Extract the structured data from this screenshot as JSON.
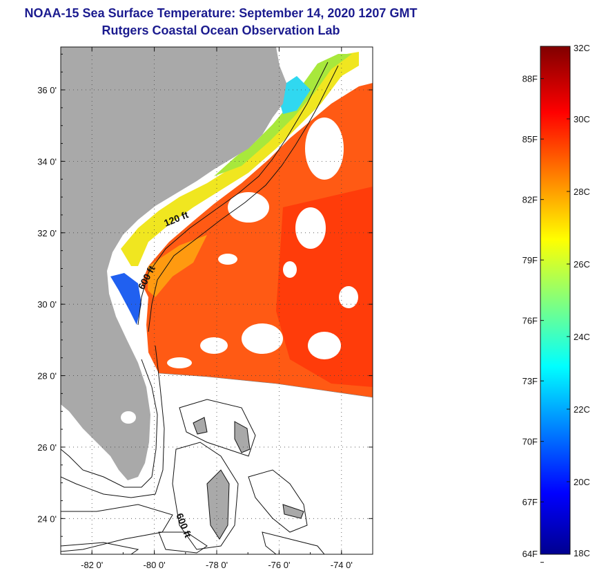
{
  "title_line1": "NOAA-15 Sea Surface Temperature:  September 14, 2020 1207 GMT",
  "title_line2": "Rutgers Coastal Ocean Observation Lab",
  "colors": {
    "land": "#a9a9a9",
    "ocean_warm": "#ff5a14",
    "ocean_warmer": "#ff3a0a",
    "cloud": "#ffffff",
    "title": "#1b1b8f"
  },
  "map": {
    "lon_range": [
      -83,
      -73
    ],
    "lat_range": [
      23,
      37.2
    ],
    "lon_ticks": [
      {
        "value": -82,
        "label": "-82 0'"
      },
      {
        "value": -80,
        "label": "-80 0'"
      },
      {
        "value": -78,
        "label": "-78 0'"
      },
      {
        "value": -76,
        "label": "-76 0'"
      },
      {
        "value": -74,
        "label": "-74 0'"
      }
    ],
    "lat_ticks": [
      {
        "value": 24,
        "label": "24 0'"
      },
      {
        "value": 26,
        "label": "26 0'"
      },
      {
        "value": 28,
        "label": "28 0'"
      },
      {
        "value": 30,
        "label": "30 0'"
      },
      {
        "value": 32,
        "label": "32 0'"
      },
      {
        "value": 34,
        "label": "34 0'"
      },
      {
        "value": 36,
        "label": "36 0'"
      }
    ],
    "contour_labels": [
      "120 ft",
      "600 ft",
      "600 ft"
    ],
    "grid": true
  },
  "colorbar": {
    "min_c": 18,
    "max_c": 32,
    "celsius_labels": [
      {
        "value": 32,
        "label": "32C"
      },
      {
        "value": 30,
        "label": "30C"
      },
      {
        "value": 28,
        "label": "28C"
      },
      {
        "value": 26,
        "label": "26C"
      },
      {
        "value": 24,
        "label": "24C"
      },
      {
        "value": 22,
        "label": "22C"
      },
      {
        "value": 20,
        "label": "20C"
      },
      {
        "value": 18,
        "label": "18C"
      }
    ],
    "fahrenheit_labels": [
      {
        "value": 88,
        "label": "88F"
      },
      {
        "value": 85,
        "label": "85F"
      },
      {
        "value": 82,
        "label": "82F"
      },
      {
        "value": 79,
        "label": "79F"
      },
      {
        "value": 76,
        "label": "76F"
      },
      {
        "value": 73,
        "label": "73F"
      },
      {
        "value": 70,
        "label": "70F"
      },
      {
        "value": 67,
        "label": "67F"
      },
      {
        "value": 64,
        "label": "64F"
      }
    ]
  }
}
